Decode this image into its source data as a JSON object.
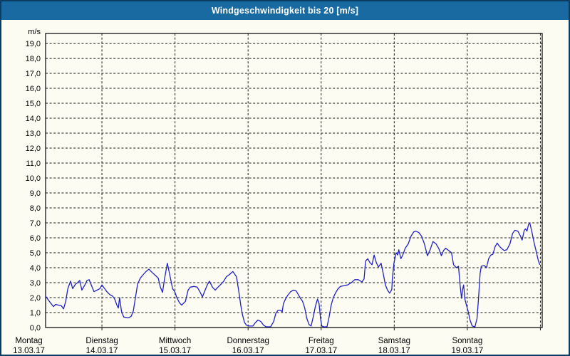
{
  "window": {
    "title": "Windgeschwindigkeit bis 20 [m/s]"
  },
  "colors": {
    "titlebar_bg": "#1a6aa2",
    "title_text": "#ffffff",
    "frame_border": "#0b3c64",
    "background": "#fcfcf2",
    "grid": "#1a1a1a",
    "series_line": "#2121c8",
    "label_text": "#000000"
  },
  "chart_data": {
    "type": "line",
    "title": "Windgeschwindigkeit bis 20 [m/s]",
    "unit_label": "m/s",
    "grid": "dashed",
    "legend": "none",
    "y_axis": {
      "min": 0,
      "max": 19.67,
      "ticks": [
        {
          "value": 0,
          "label": "0,0"
        },
        {
          "value": 1,
          "label": "1,0"
        },
        {
          "value": 2,
          "label": "2,0"
        },
        {
          "value": 3,
          "label": "3,0"
        },
        {
          "value": 4,
          "label": "4,0"
        },
        {
          "value": 5,
          "label": "5,0"
        },
        {
          "value": 6,
          "label": "6,0"
        },
        {
          "value": 7,
          "label": "7,0"
        },
        {
          "value": 8,
          "label": "8,0"
        },
        {
          "value": 9,
          "label": "9,0"
        },
        {
          "value": 10,
          "label": "10,0"
        },
        {
          "value": 11,
          "label": "11,0"
        },
        {
          "value": 12,
          "label": "12,0"
        },
        {
          "value": 13,
          "label": "13,0"
        },
        {
          "value": 14,
          "label": "14,0"
        },
        {
          "value": 15,
          "label": "15,0"
        },
        {
          "value": 16,
          "label": "16,0"
        },
        {
          "value": 17,
          "label": "17,0"
        },
        {
          "value": 18,
          "label": "18,0"
        },
        {
          "value": 19,
          "label": "19,0"
        }
      ]
    },
    "x_axis": {
      "unit": "hours_from_monday_0000",
      "start_hour": 5.5,
      "end_hour": 168.6,
      "week_end_tick_hour": 168,
      "days": [
        {
          "name": "Montag",
          "date": "13.03.17",
          "hour": 0
        },
        {
          "name": "Dienstag",
          "date": "14.03.17",
          "hour": 24
        },
        {
          "name": "Mittwoch",
          "date": "15.03.17",
          "hour": 48
        },
        {
          "name": "Donnerstag",
          "date": "16.03.17",
          "hour": 72
        },
        {
          "name": "Freitag",
          "date": "17.03.17",
          "hour": 96
        },
        {
          "name": "Samstag",
          "date": "18.03.17",
          "hour": 120
        },
        {
          "name": "Sonntag",
          "date": "19.03.17",
          "hour": 144
        }
      ]
    },
    "series": [
      {
        "name": "Windgeschwindigkeit",
        "color": "#2121c8",
        "points": [
          [
            5.5,
            2.1
          ],
          [
            6.2,
            1.9
          ],
          [
            6.9,
            1.7
          ],
          [
            8.1,
            1.4
          ],
          [
            8.8,
            1.55
          ],
          [
            9.7,
            1.5
          ],
          [
            10.7,
            1.45
          ],
          [
            11.4,
            1.25
          ],
          [
            12.1,
            1.75
          ],
          [
            12.8,
            2.6
          ],
          [
            13.7,
            3.1
          ],
          [
            14.4,
            2.6
          ],
          [
            15.3,
            2.9
          ],
          [
            16.0,
            3.0
          ],
          [
            16.7,
            3.15
          ],
          [
            17.4,
            2.5
          ],
          [
            18.4,
            2.85
          ],
          [
            19.1,
            3.15
          ],
          [
            19.8,
            3.2
          ],
          [
            20.5,
            2.85
          ],
          [
            21.4,
            2.4
          ],
          [
            22.4,
            2.5
          ],
          [
            23.3,
            2.6
          ],
          [
            24.0,
            2.85
          ],
          [
            24.9,
            2.6
          ],
          [
            25.6,
            2.4
          ],
          [
            26.6,
            2.2
          ],
          [
            27.5,
            2.1
          ],
          [
            28.2,
            1.9
          ],
          [
            28.9,
            1.5
          ],
          [
            29.4,
            1.3
          ],
          [
            29.8,
            2.0
          ],
          [
            30.5,
            1.0
          ],
          [
            31.2,
            0.7
          ],
          [
            32.7,
            0.65
          ],
          [
            33.6,
            0.75
          ],
          [
            34.3,
            1.1
          ],
          [
            35.0,
            2.0
          ],
          [
            35.7,
            2.9
          ],
          [
            36.6,
            3.3
          ],
          [
            37.6,
            3.55
          ],
          [
            38.5,
            3.75
          ],
          [
            39.4,
            3.9
          ],
          [
            40.4,
            3.7
          ],
          [
            41.5,
            3.5
          ],
          [
            42.5,
            3.3
          ],
          [
            43.2,
            2.7
          ],
          [
            43.9,
            2.35
          ],
          [
            44.6,
            3.3
          ],
          [
            45.5,
            4.3
          ],
          [
            46.2,
            3.6
          ],
          [
            46.7,
            3.1
          ],
          [
            47.2,
            2.6
          ],
          [
            47.9,
            2.4
          ],
          [
            48.6,
            2.0
          ],
          [
            49.5,
            1.65
          ],
          [
            50.2,
            1.5
          ],
          [
            51.4,
            1.75
          ],
          [
            52.3,
            2.5
          ],
          [
            53.0,
            2.7
          ],
          [
            54.2,
            2.75
          ],
          [
            55.3,
            2.7
          ],
          [
            56.3,
            2.35
          ],
          [
            57.0,
            2.05
          ],
          [
            57.9,
            2.5
          ],
          [
            58.6,
            2.85
          ],
          [
            59.3,
            3.1
          ],
          [
            60.3,
            2.7
          ],
          [
            61.2,
            2.5
          ],
          [
            62.1,
            2.7
          ],
          [
            63.1,
            2.9
          ],
          [
            64.0,
            3.1
          ],
          [
            64.9,
            3.4
          ],
          [
            65.9,
            3.55
          ],
          [
            67.0,
            3.75
          ],
          [
            68.2,
            3.4
          ],
          [
            68.9,
            2.5
          ],
          [
            69.6,
            1.5
          ],
          [
            70.1,
            0.9
          ],
          [
            70.8,
            0.35
          ],
          [
            71.5,
            0.15
          ],
          [
            72.4,
            0.1
          ],
          [
            73.6,
            0.1
          ],
          [
            74.3,
            0.3
          ],
          [
            75.2,
            0.5
          ],
          [
            76.2,
            0.4
          ],
          [
            77.1,
            0.15
          ],
          [
            78.0,
            0.05
          ],
          [
            79.4,
            0.05
          ],
          [
            80.4,
            0.4
          ],
          [
            81.1,
            0.95
          ],
          [
            81.8,
            1.15
          ],
          [
            82.7,
            1.15
          ],
          [
            83.2,
            1.05
          ],
          [
            83.6,
            1.6
          ],
          [
            84.3,
            1.9
          ],
          [
            85.0,
            2.15
          ],
          [
            86.0,
            2.4
          ],
          [
            86.9,
            2.5
          ],
          [
            87.8,
            2.45
          ],
          [
            88.5,
            2.2
          ],
          [
            89.2,
            1.95
          ],
          [
            89.9,
            1.75
          ],
          [
            90.6,
            1.3
          ],
          [
            91.3,
            0.6
          ],
          [
            92.0,
            0.2
          ],
          [
            92.7,
            0.1
          ],
          [
            93.4,
            0.7
          ],
          [
            94.1,
            1.4
          ],
          [
            94.8,
            1.9
          ],
          [
            95.3,
            1.6
          ],
          [
            95.8,
            0.6
          ],
          [
            96.2,
            0.1
          ],
          [
            96.9,
            0.05
          ],
          [
            97.9,
            0.05
          ],
          [
            98.6,
            0.7
          ],
          [
            99.3,
            1.5
          ],
          [
            100.0,
            2.0
          ],
          [
            100.7,
            2.3
          ],
          [
            101.4,
            2.55
          ],
          [
            102.3,
            2.75
          ],
          [
            103.5,
            2.8
          ],
          [
            104.7,
            2.85
          ],
          [
            105.9,
            3.0
          ],
          [
            107.0,
            3.2
          ],
          [
            108.2,
            3.2
          ],
          [
            109.4,
            3.05
          ],
          [
            110.1,
            3.25
          ],
          [
            110.6,
            4.45
          ],
          [
            111.3,
            4.6
          ],
          [
            112.0,
            4.35
          ],
          [
            112.7,
            4.2
          ],
          [
            113.4,
            4.85
          ],
          [
            114.1,
            4.35
          ],
          [
            114.8,
            4.05
          ],
          [
            115.7,
            4.3
          ],
          [
            116.4,
            3.6
          ],
          [
            117.1,
            2.85
          ],
          [
            117.8,
            2.5
          ],
          [
            118.5,
            2.3
          ],
          [
            119.2,
            2.55
          ],
          [
            119.4,
            3.3
          ],
          [
            119.9,
            4.3
          ],
          [
            120.6,
            5.0
          ],
          [
            121.1,
            4.85
          ],
          [
            121.5,
            5.2
          ],
          [
            122.2,
            4.6
          ],
          [
            122.9,
            4.9
          ],
          [
            123.6,
            5.3
          ],
          [
            124.6,
            5.6
          ],
          [
            125.5,
            6.1
          ],
          [
            126.4,
            6.4
          ],
          [
            127.1,
            6.45
          ],
          [
            128.1,
            6.35
          ],
          [
            129.0,
            6.1
          ],
          [
            129.9,
            5.6
          ],
          [
            130.9,
            4.8
          ],
          [
            131.8,
            5.2
          ],
          [
            132.7,
            5.75
          ],
          [
            133.7,
            5.6
          ],
          [
            134.6,
            5.3
          ],
          [
            135.5,
            4.8
          ],
          [
            136.2,
            5.15
          ],
          [
            136.9,
            5.3
          ],
          [
            137.9,
            5.15
          ],
          [
            138.8,
            5.0
          ],
          [
            139.5,
            4.2
          ],
          [
            140.4,
            4.0
          ],
          [
            141.1,
            4.1
          ],
          [
            141.6,
            2.9
          ],
          [
            142.1,
            1.95
          ],
          [
            142.5,
            2.6
          ],
          [
            142.8,
            2.85
          ],
          [
            143.2,
            1.9
          ],
          [
            143.7,
            1.5
          ],
          [
            144.2,
            1.15
          ],
          [
            144.9,
            0.5
          ],
          [
            145.6,
            0.1
          ],
          [
            146.5,
            0.05
          ],
          [
            147.2,
            0.6
          ],
          [
            147.7,
            2.0
          ],
          [
            148.2,
            3.6
          ],
          [
            148.6,
            4.1
          ],
          [
            149.6,
            4.15
          ],
          [
            150.3,
            4.0
          ],
          [
            151.0,
            4.6
          ],
          [
            151.7,
            4.85
          ],
          [
            152.4,
            4.9
          ],
          [
            153.1,
            5.4
          ],
          [
            153.8,
            5.65
          ],
          [
            154.5,
            5.45
          ],
          [
            155.2,
            5.3
          ],
          [
            156.1,
            5.15
          ],
          [
            157.0,
            5.2
          ],
          [
            158.0,
            5.6
          ],
          [
            158.9,
            6.3
          ],
          [
            159.6,
            6.5
          ],
          [
            160.6,
            6.45
          ],
          [
            161.5,
            6.1
          ],
          [
            162.0,
            5.85
          ],
          [
            162.7,
            6.5
          ],
          [
            163.1,
            6.6
          ],
          [
            163.6,
            6.45
          ],
          [
            164.1,
            6.9
          ],
          [
            164.5,
            7.0
          ],
          [
            165.2,
            6.4
          ],
          [
            165.9,
            5.7
          ],
          [
            166.6,
            5.1
          ],
          [
            167.3,
            4.5
          ],
          [
            167.8,
            4.2
          ]
        ]
      }
    ]
  }
}
